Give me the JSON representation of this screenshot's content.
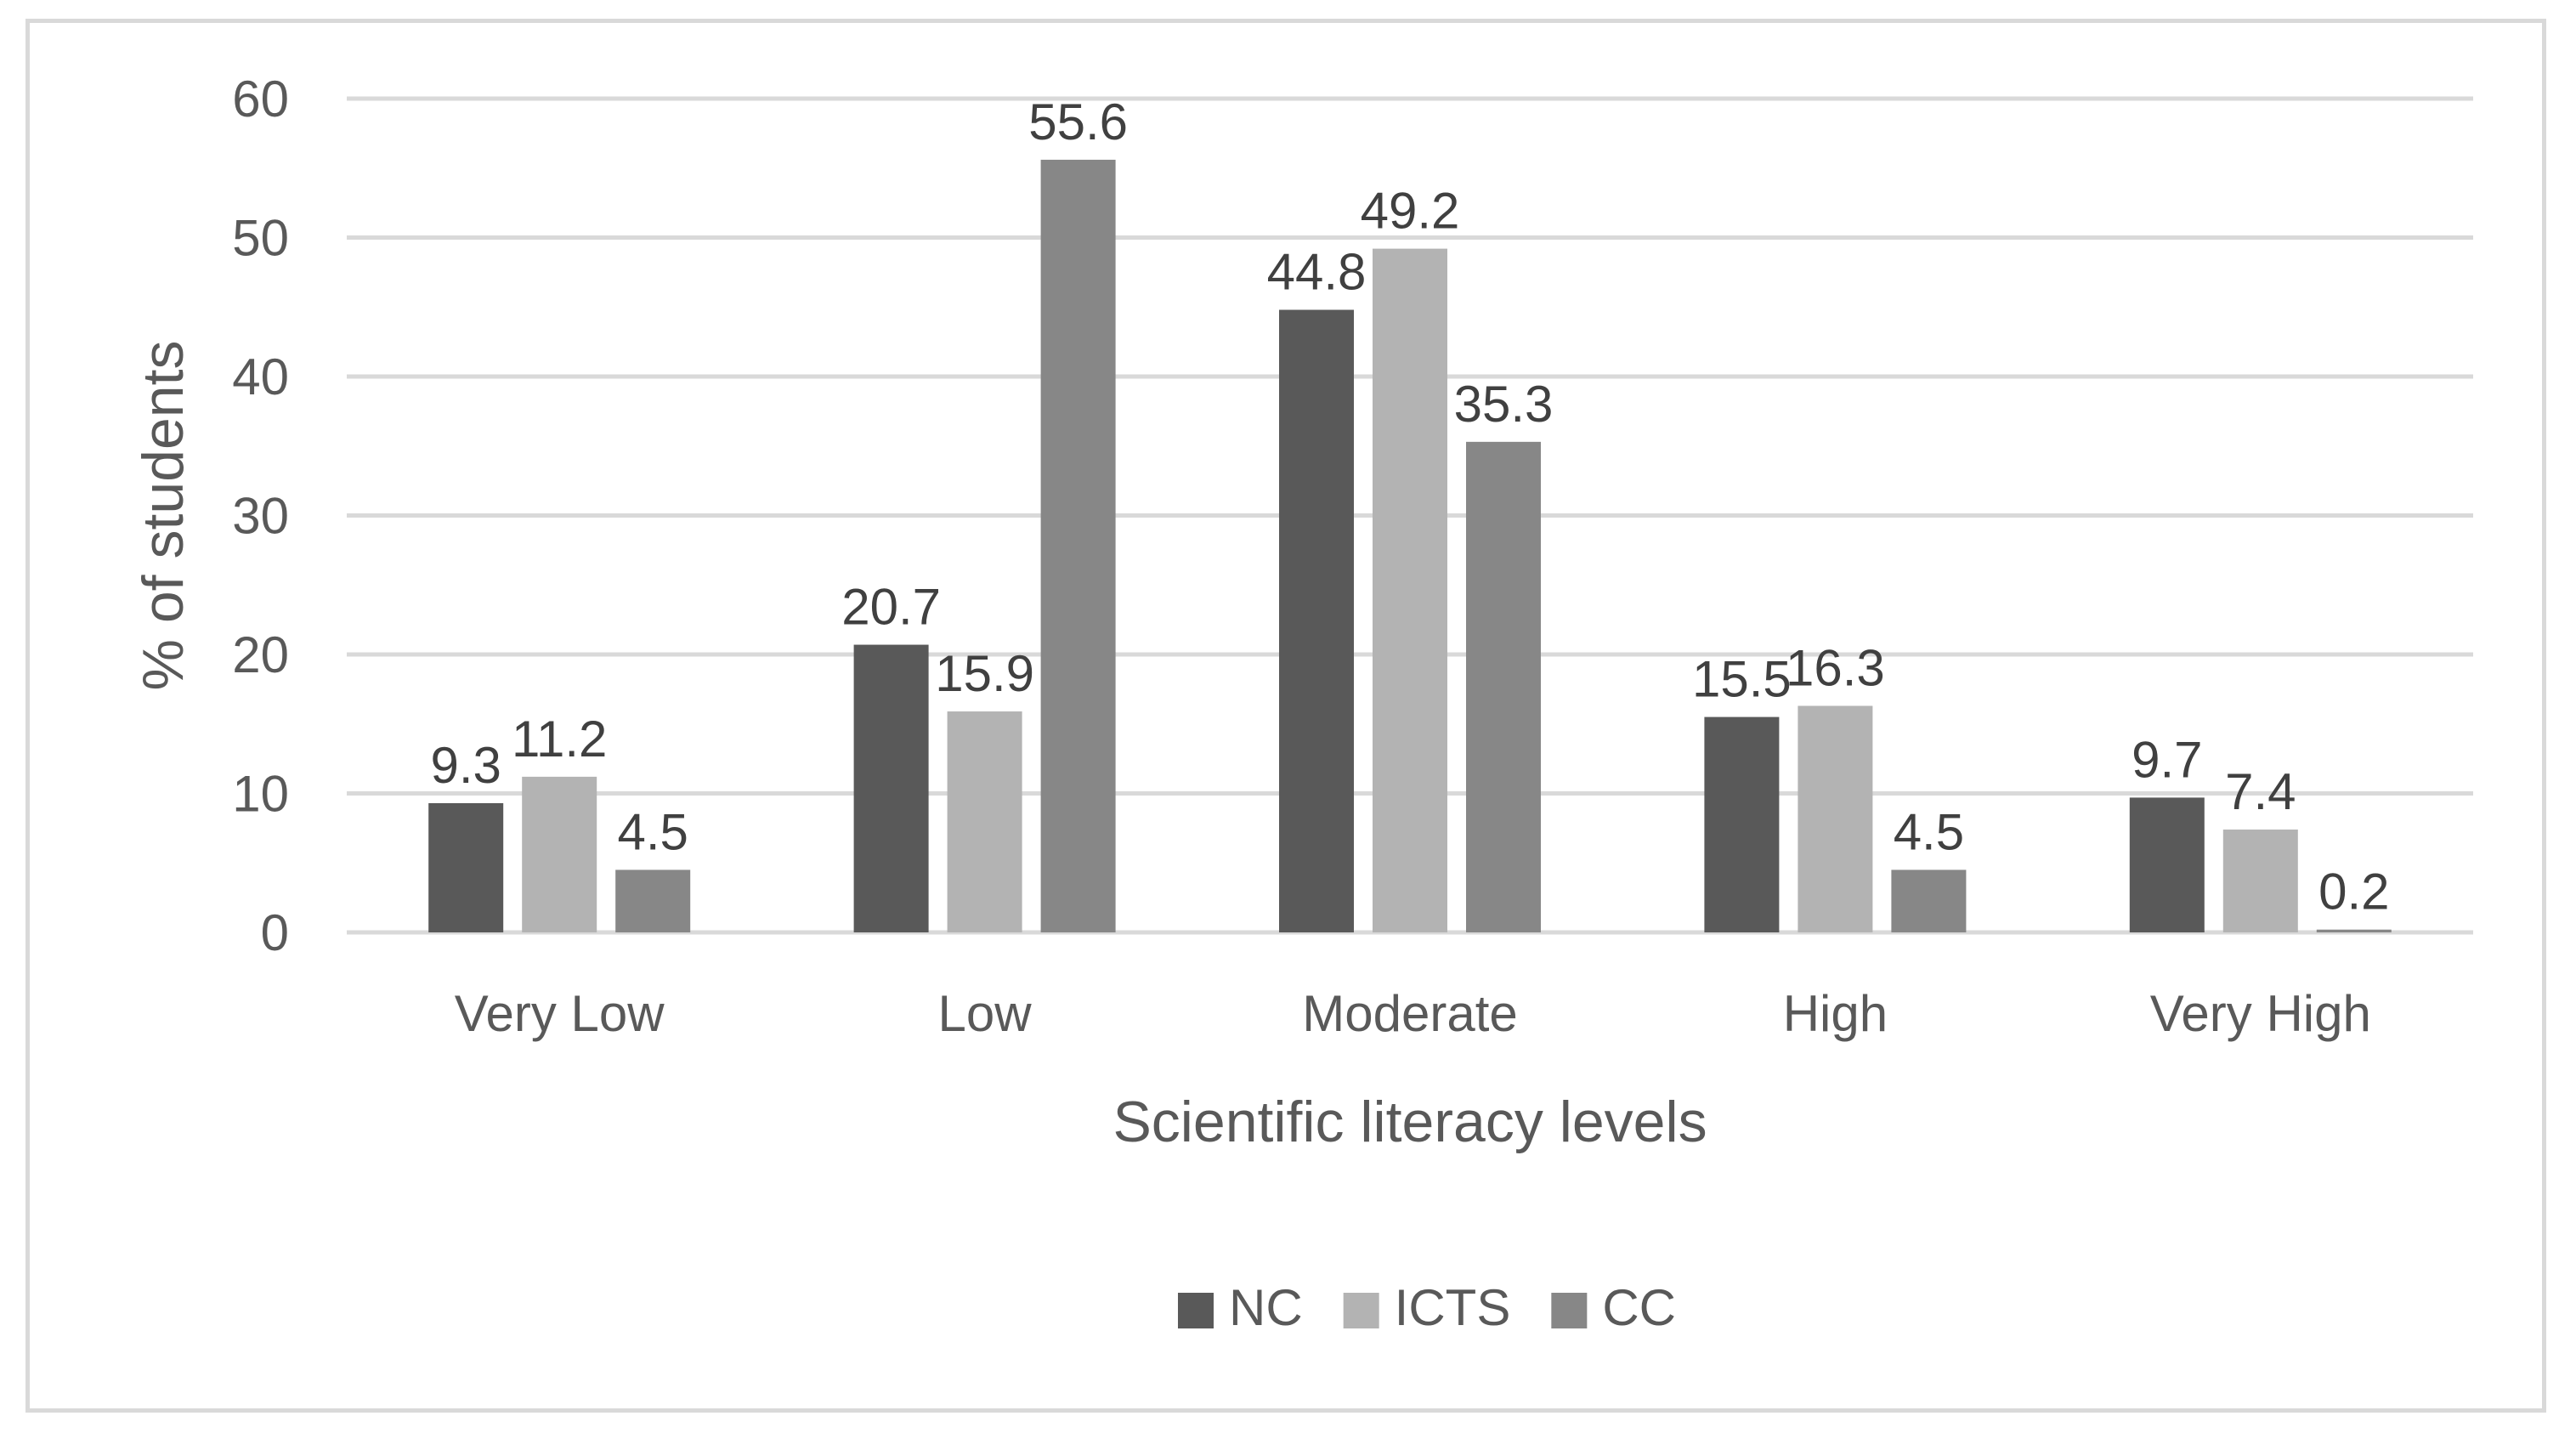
{
  "chart_data": {
    "type": "bar",
    "categories": [
      "Very Low",
      "Low",
      "Moderate",
      "High",
      "Very High"
    ],
    "series": [
      {
        "name": "NC",
        "color": "#595959",
        "values": [
          9.3,
          20.7,
          44.8,
          15.5,
          9.7
        ]
      },
      {
        "name": "ICTS",
        "color": "#b3b3b3",
        "values": [
          11.2,
          15.9,
          49.2,
          16.3,
          7.4
        ]
      },
      {
        "name": "CC",
        "color": "#878787",
        "values": [
          4.5,
          55.6,
          35.3,
          4.5,
          0.2
        ]
      }
    ],
    "xlabel": "Scientific literacy levels",
    "ylabel": "% of students",
    "ylim": [
      0,
      60
    ],
    "yticks": [
      0,
      10,
      20,
      30,
      40,
      50,
      60
    ],
    "grid": true,
    "legend": "bottom"
  }
}
